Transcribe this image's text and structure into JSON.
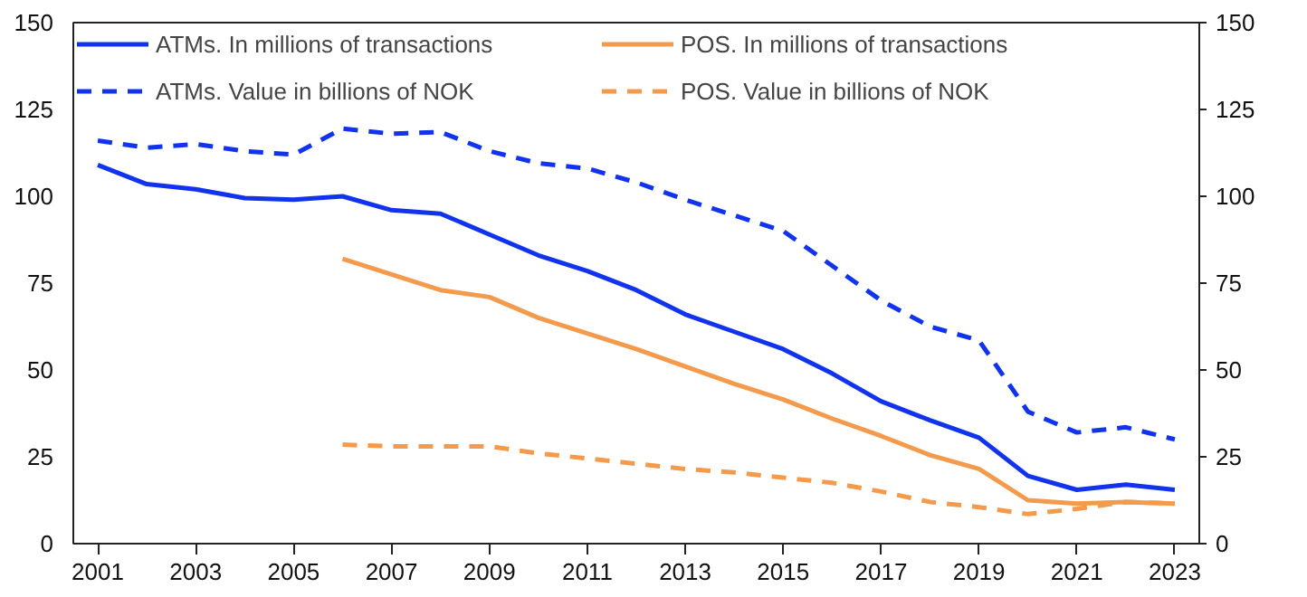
{
  "chart_data": {
    "type": "line",
    "x": [
      2001,
      2002,
      2003,
      2004,
      2005,
      2006,
      2007,
      2008,
      2009,
      2010,
      2011,
      2012,
      2013,
      2014,
      2015,
      2016,
      2017,
      2018,
      2019,
      2020,
      2021,
      2022,
      2023
    ],
    "series": [
      {
        "name": "ATMs. In millions of transactions",
        "color": "#1133ee",
        "line_style": "solid",
        "values": [
          109,
          103.5,
          102,
          99.5,
          99,
          100,
          96,
          95,
          89,
          83,
          78.5,
          73,
          66,
          61,
          56,
          49,
          41,
          35.5,
          30.5,
          19.5,
          15.5,
          17,
          15.5
        ]
      },
      {
        "name": "POS. In millions of transactions",
        "color": "#f39a4c",
        "line_style": "solid",
        "values": [
          null,
          null,
          null,
          null,
          null,
          82,
          77.5,
          73,
          71,
          65,
          60.5,
          56,
          51,
          46,
          41.5,
          36,
          31,
          25.5,
          21.5,
          12.5,
          11.5,
          12,
          11.5
        ]
      },
      {
        "name": "ATMs. Value in billions of NOK",
        "color": "#1133ee",
        "line_style": "dashed",
        "values": [
          116,
          114,
          115,
          113,
          112,
          119.5,
          118,
          118.5,
          113,
          109.5,
          108,
          104,
          99,
          94.5,
          90,
          80,
          70,
          62.5,
          58.5,
          38,
          32,
          33.5,
          30
        ]
      },
      {
        "name": "POS. Value in billions of NOK",
        "color": "#f39a4c",
        "line_style": "dashed",
        "values": [
          null,
          null,
          null,
          null,
          null,
          28.5,
          28,
          28,
          28,
          26,
          24.5,
          23,
          21.5,
          20.5,
          19,
          17.5,
          15,
          12,
          10.5,
          8.5,
          10,
          12,
          11.5
        ]
      }
    ],
    "xlim": [
      2000.5,
      2023.5
    ],
    "xticks": [
      2001,
      2003,
      2005,
      2007,
      2009,
      2011,
      2013,
      2015,
      2017,
      2019,
      2021,
      2023
    ],
    "ylim": [
      0,
      150
    ],
    "yticks": [
      0,
      25,
      50,
      75,
      100,
      125,
      150
    ],
    "y2lim": [
      0,
      150
    ],
    "y2ticks": [
      0,
      25,
      50,
      75,
      100,
      125,
      150
    ],
    "grid": false,
    "legend": "top"
  }
}
